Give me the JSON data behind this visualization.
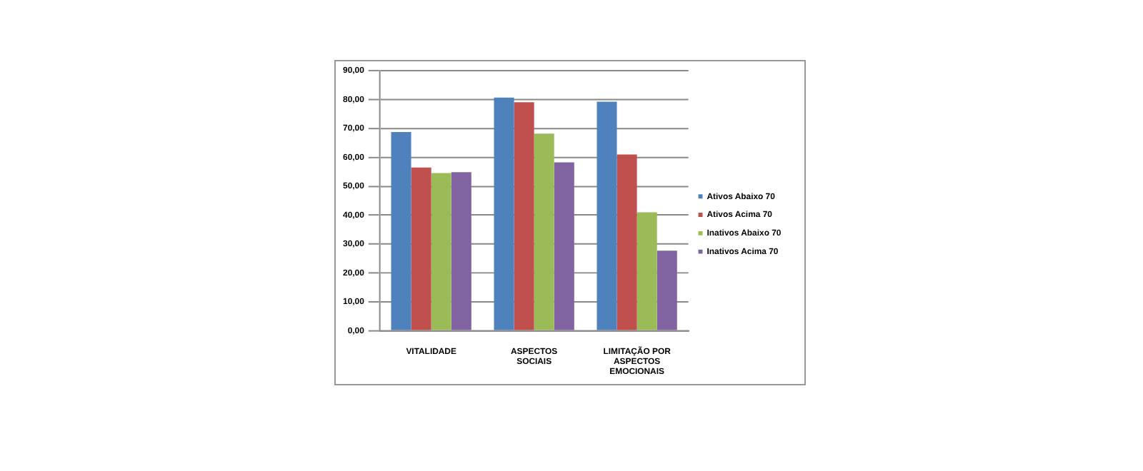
{
  "chart_data": {
    "type": "bar",
    "categories": [
      "VITALIDADE",
      "ASPECTOS SOCIAIS",
      "LIMITAÇÃO POR ASPECTOS EMOCIONAIS"
    ],
    "series": [
      {
        "name": "Ativos Abaixo 70",
        "color": "#4f81bd",
        "values": [
          68.8,
          80.7,
          79.3
        ]
      },
      {
        "name": "Ativos Acima 70",
        "color": "#c0504d",
        "values": [
          56.5,
          79.1,
          61.0
        ]
      },
      {
        "name": "Inativos Abaixo 70",
        "color": "#9bbb59",
        "values": [
          54.6,
          68.2,
          41.0
        ]
      },
      {
        "name": "Inativos Acima 70",
        "color": "#8064a2",
        "values": [
          54.9,
          58.3,
          27.7
        ]
      }
    ],
    "ylim": [
      0,
      90
    ],
    "yticks": [
      {
        "value": 0,
        "label": "0,00"
      },
      {
        "value": 10,
        "label": "10,00"
      },
      {
        "value": 20,
        "label": "20,00"
      },
      {
        "value": 30,
        "label": "30,00"
      },
      {
        "value": 40,
        "label": "40,00"
      },
      {
        "value": 50,
        "label": "50,00"
      },
      {
        "value": 60,
        "label": "60,00"
      },
      {
        "value": 70,
        "label": "70,00"
      },
      {
        "value": 80,
        "label": "80,00"
      },
      {
        "value": 90,
        "label": "90,00"
      }
    ],
    "grid": "y",
    "legend": "right"
  }
}
